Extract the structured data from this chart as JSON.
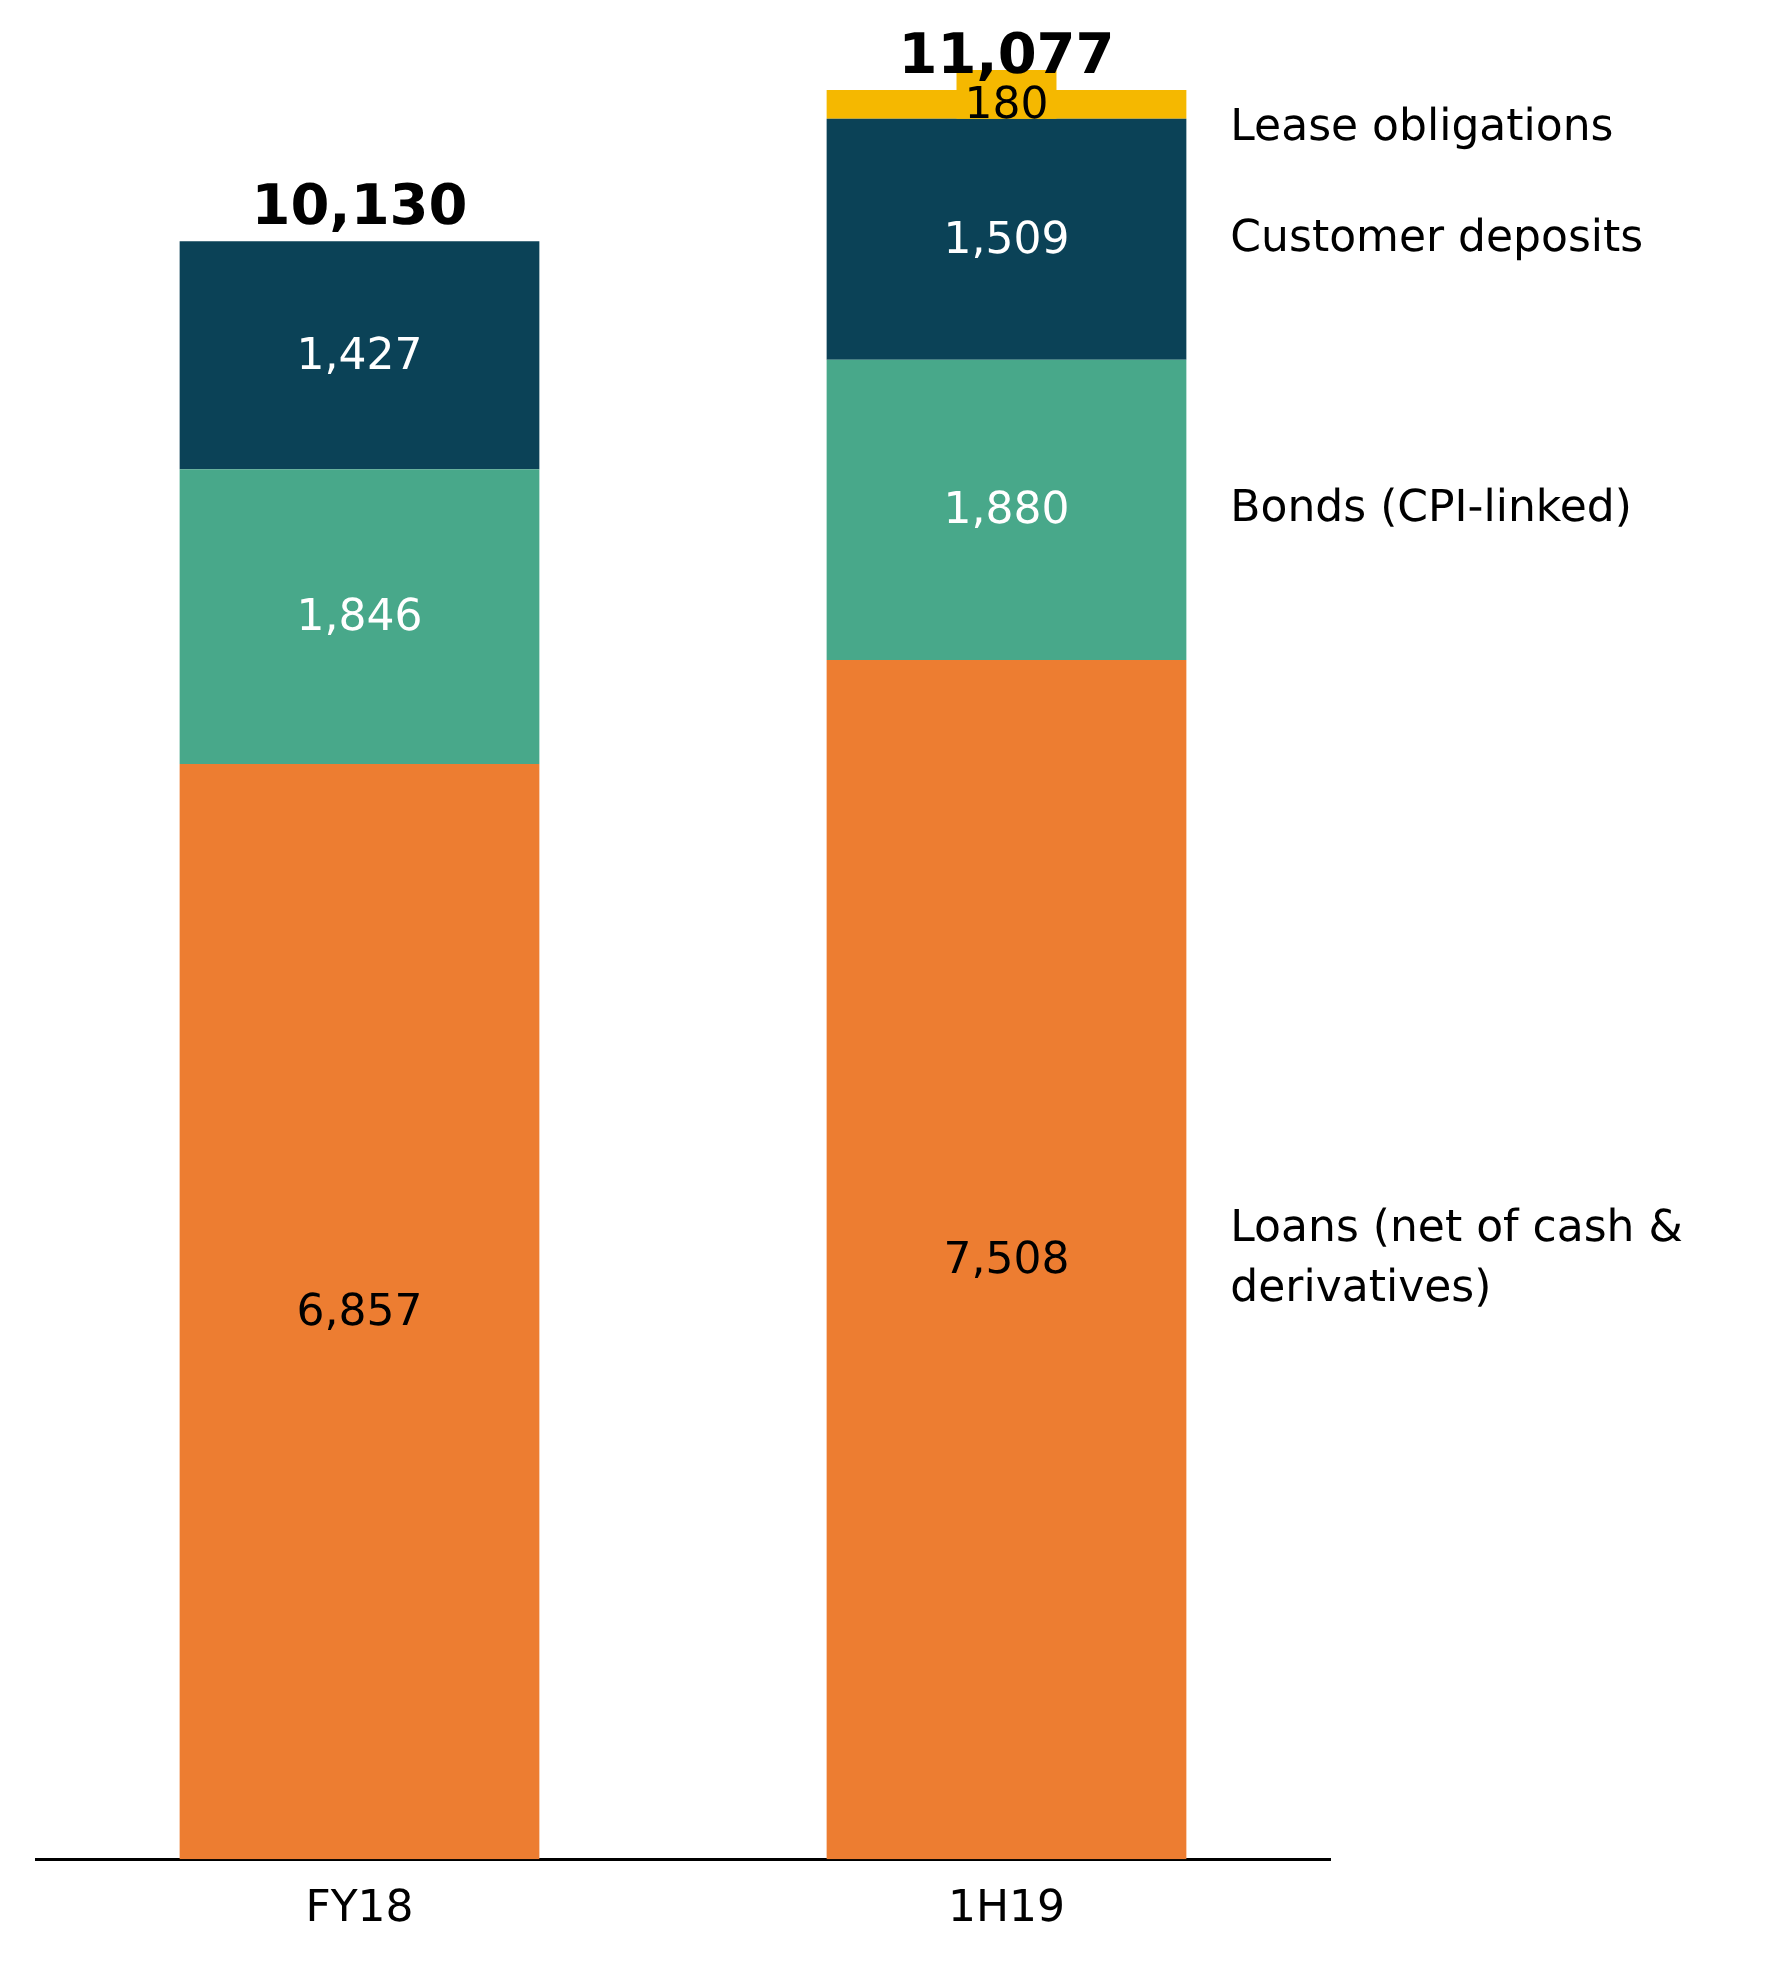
{
  "chart_data": {
    "type": "bar",
    "stacked": true,
    "categories": [
      "FY18",
      "1H19"
    ],
    "series": [
      {
        "name": "Loans (net of cash & derivatives)",
        "color": "#ed7d31",
        "values": [
          6857,
          7508
        ],
        "value_labels": [
          "6,857",
          "7,508"
        ]
      },
      {
        "name": "Bonds (CPI-linked)",
        "color": "#48a88a",
        "values": [
          1846,
          1880
        ],
        "value_labels": [
          "1,846",
          "1,880"
        ]
      },
      {
        "name": "Customer deposits",
        "color": "#0b4257",
        "values": [
          1427,
          1509
        ],
        "value_labels": [
          "1,427",
          "1,509"
        ]
      },
      {
        "name": "Lease obligations",
        "color": "#f5b800",
        "values": [
          null,
          180
        ],
        "value_labels": [
          null,
          "180"
        ]
      }
    ],
    "totals": [
      "10,130",
      "11,077"
    ],
    "grid": false,
    "legend": false,
    "tick_labels": "x"
  }
}
